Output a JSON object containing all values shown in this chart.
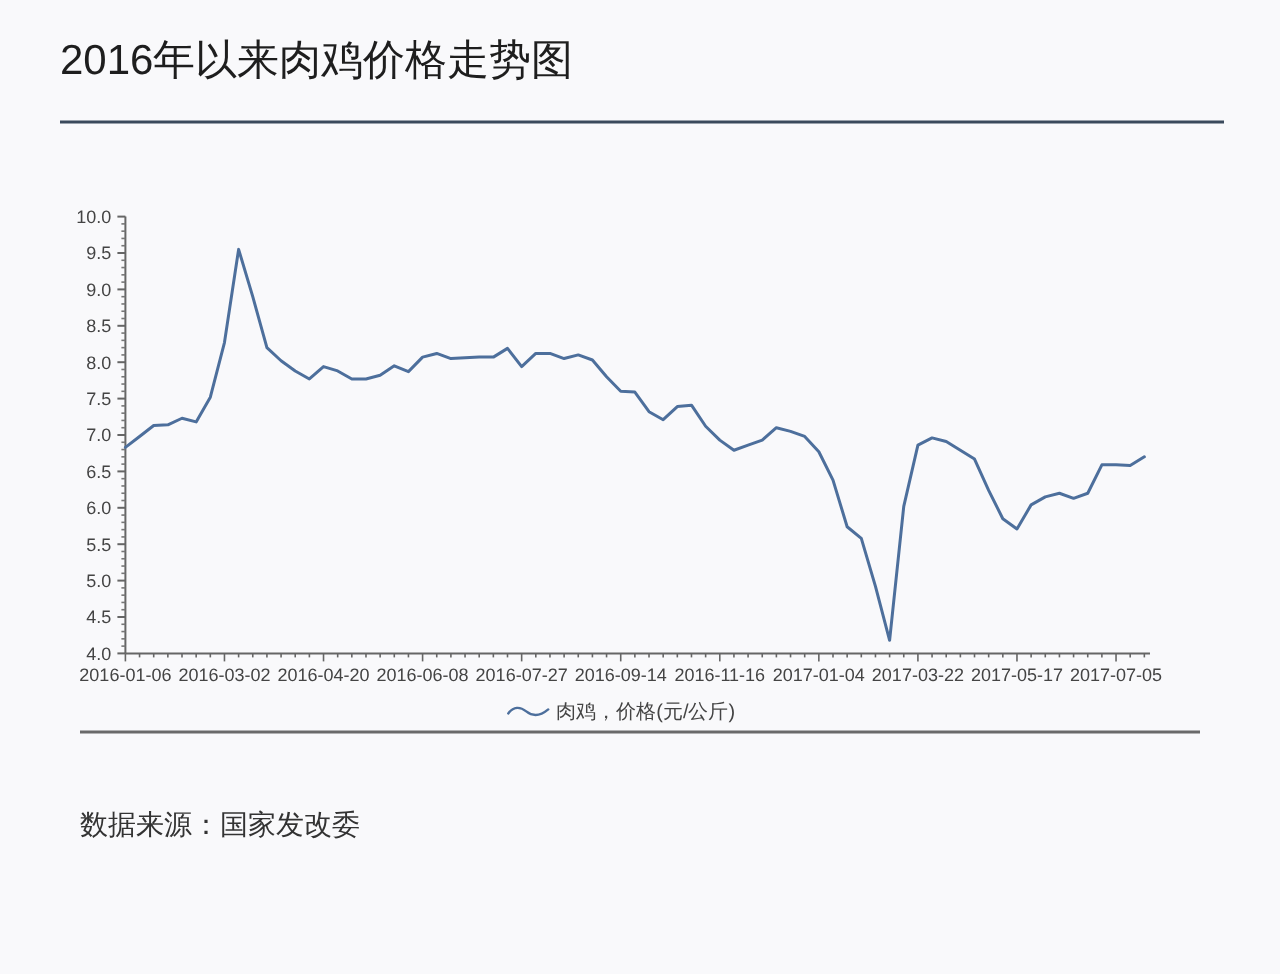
{
  "chart_data": {
    "type": "line",
    "title": "2016年以来肉鸡价格走势图",
    "categories": [
      "2016-01-06",
      null,
      null,
      null,
      null,
      null,
      null,
      "2016-03-02",
      null,
      null,
      null,
      null,
      null,
      null,
      "2016-04-20",
      null,
      null,
      null,
      null,
      null,
      null,
      "2016-06-08",
      null,
      null,
      null,
      null,
      null,
      null,
      "2016-07-27",
      null,
      null,
      null,
      null,
      null,
      null,
      "2016-09-14",
      null,
      null,
      null,
      null,
      null,
      null,
      "2016-11-16",
      null,
      null,
      null,
      null,
      null,
      null,
      "2017-01-04",
      null,
      null,
      null,
      null,
      null,
      null,
      "2017-03-22",
      null,
      null,
      null,
      null,
      null,
      null,
      "2017-05-17",
      null,
      null,
      null,
      null,
      null,
      null,
      "2017-07-05",
      null,
      null
    ],
    "series": [
      {
        "name": "肉鸡，价格(元/公斤)",
        "color": "#4d6f9c",
        "values": [
          6.83,
          6.98,
          7.13,
          7.14,
          7.23,
          7.18,
          7.52,
          8.27,
          9.55,
          8.9,
          8.2,
          8.02,
          7.88,
          7.77,
          7.94,
          7.88,
          7.77,
          7.77,
          7.82,
          7.95,
          7.87,
          8.07,
          8.12,
          8.05,
          8.06,
          8.07,
          8.07,
          8.19,
          7.94,
          8.12,
          8.12,
          8.05,
          8.1,
          8.03,
          7.8,
          7.6,
          7.59,
          7.32,
          7.21,
          7.39,
          7.41,
          7.12,
          6.93,
          6.79,
          6.86,
          6.93,
          7.1,
          7.05,
          6.98,
          6.77,
          6.38,
          5.74,
          5.58,
          4.92,
          4.18,
          6.02,
          6.86,
          6.96,
          6.91,
          6.79,
          6.67,
          6.24,
          5.85,
          5.71,
          6.04,
          6.15,
          6.2,
          6.13,
          6.2,
          6.59,
          6.59,
          6.58,
          6.7
        ]
      }
    ],
    "ylim": [
      4,
      10
    ],
    "yticks": [
      {
        "value": 4,
        "label": "4.0"
      },
      {
        "value": 4.5,
        "label": "4.5"
      },
      {
        "value": 5,
        "label": "5.0"
      },
      {
        "value": 5.5,
        "label": "5.5"
      },
      {
        "value": 6,
        "label": "6.0"
      },
      {
        "value": 6.5,
        "label": "6.5"
      },
      {
        "value": 7,
        "label": "7.0"
      },
      {
        "value": 7.5,
        "label": "7.5"
      },
      {
        "value": 8,
        "label": "8.0"
      },
      {
        "value": 8.5,
        "label": "8.5"
      },
      {
        "value": 9,
        "label": "9.0"
      },
      {
        "value": 9.5,
        "label": "9.5"
      },
      {
        "value": 10,
        "label": "10.0"
      }
    ],
    "legend": "bottom",
    "line_style": "solid",
    "annotations": [
      "数据来源：国家发改委"
    ]
  }
}
